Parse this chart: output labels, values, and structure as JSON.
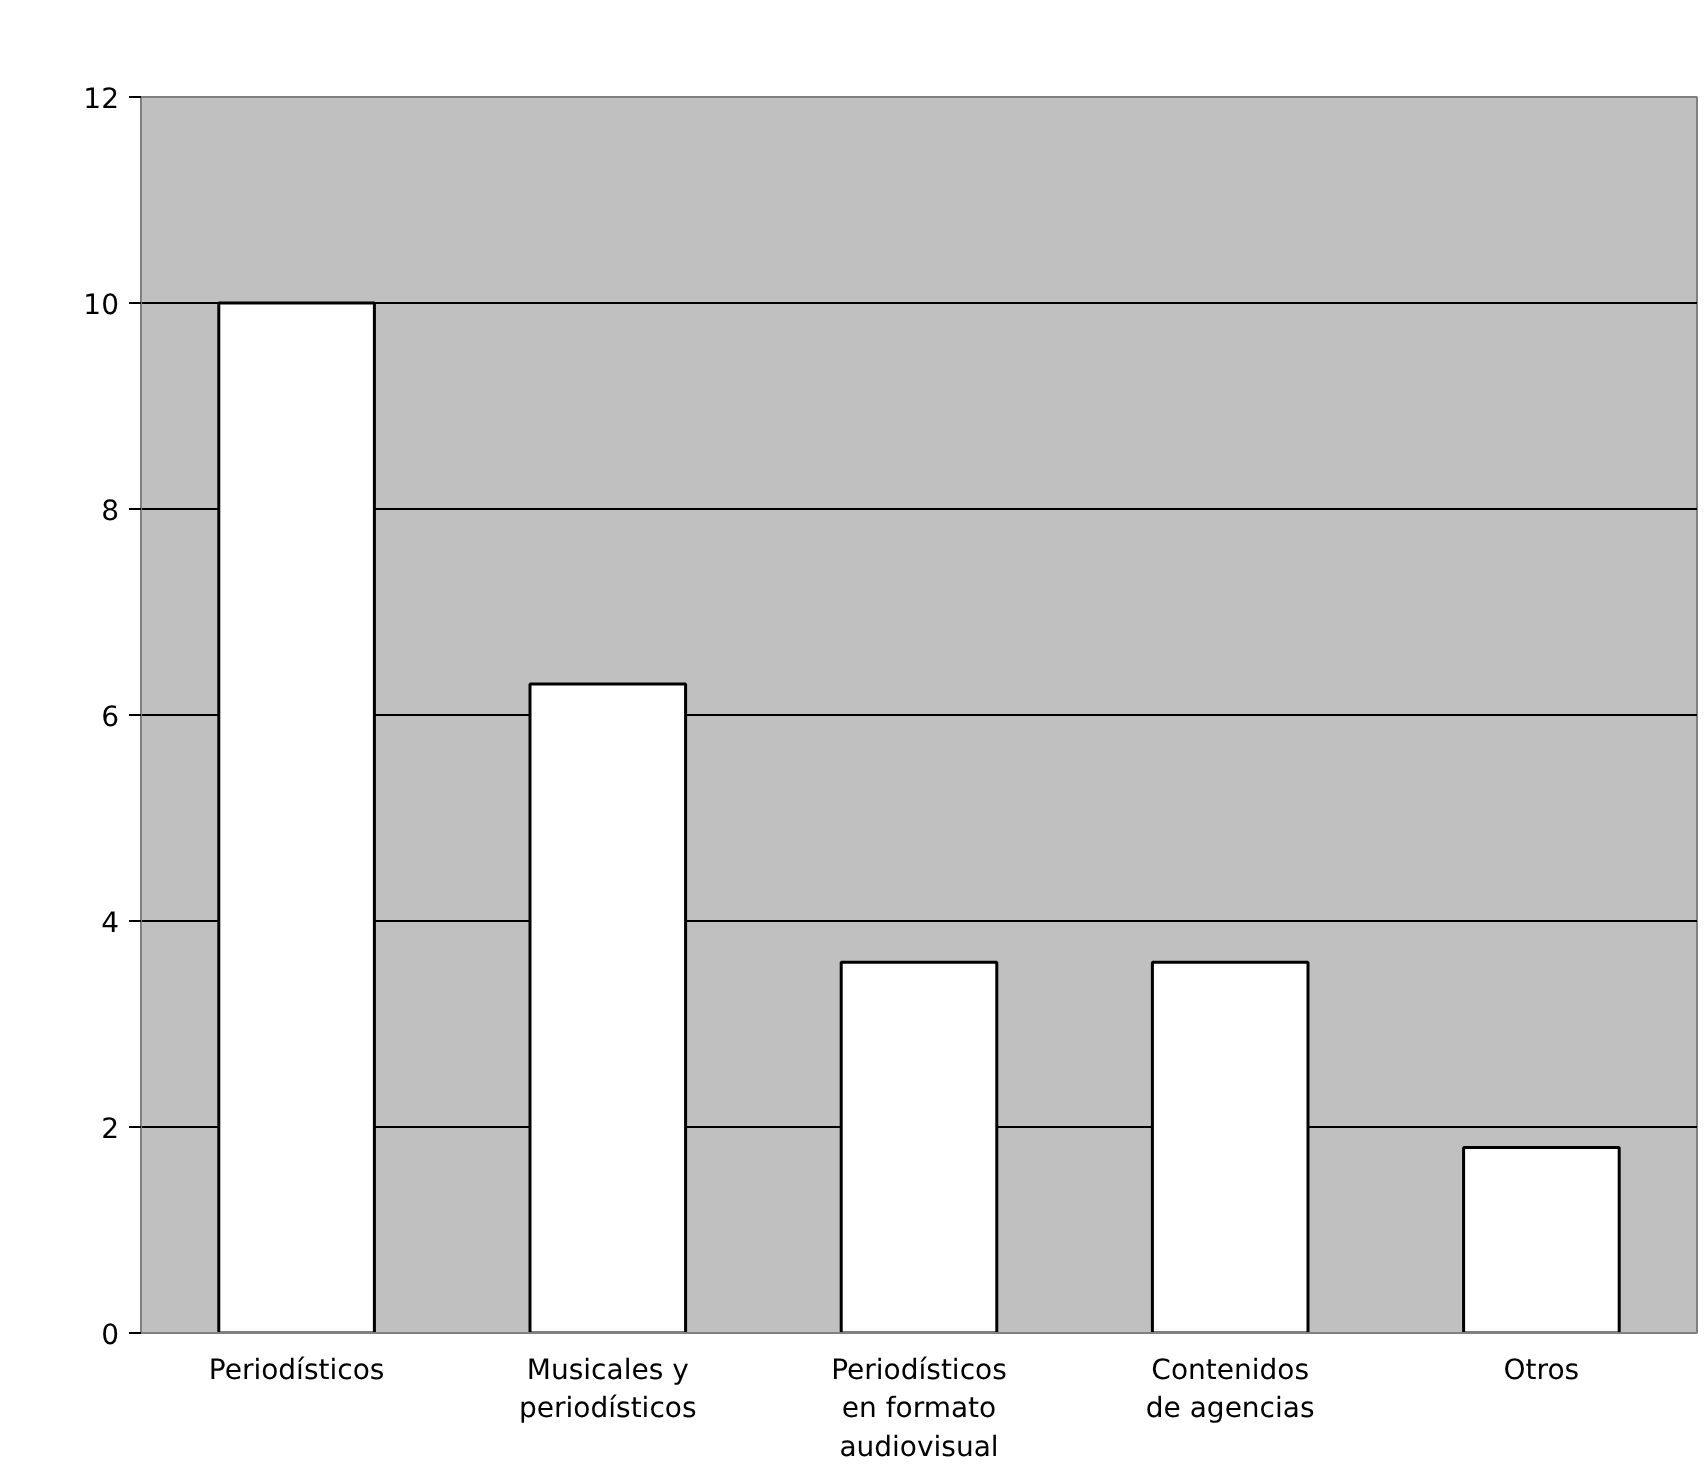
{
  "chart_data": {
    "type": "bar",
    "categories": [
      "Periodísticos",
      "Musicales y periodísticos",
      "Periodísticos en formato audiovisual",
      "Contenidos de agencias",
      "Otros"
    ],
    "values": [
      10,
      6.3,
      3.6,
      3.6,
      1.8
    ],
    "color": "#ffffff",
    "ylim": [
      0,
      12
    ],
    "yticks": [
      0,
      2,
      4,
      6,
      8,
      10,
      12
    ],
    "grid": "y"
  }
}
